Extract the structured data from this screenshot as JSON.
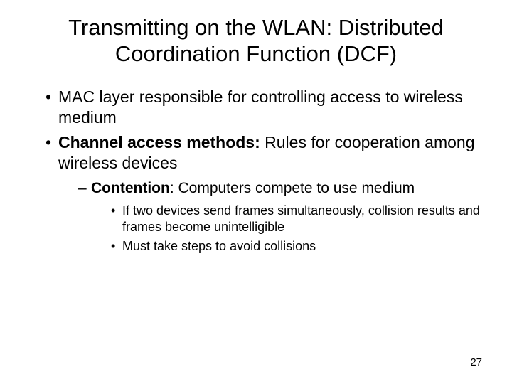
{
  "slide": {
    "title": "Transmitting on the WLAN: Distributed Coordination Function (DCF)",
    "page_number": "27",
    "background_color": "#ffffff",
    "text_color": "#000000",
    "title_fontsize": 31,
    "l1_fontsize": 23,
    "l2_fontsize": 21,
    "l3_fontsize": 18,
    "bullets": {
      "l1_a": "MAC layer responsible for controlling access to wireless medium",
      "l1_b_bold": "Channel access methods:",
      "l1_b_rest": " Rules for cooperation among wireless devices",
      "l2_a_bold": "Contention",
      "l2_a_rest": ": Computers compete to use medium",
      "l3_a": "If two devices send frames simultaneously, collision results and frames become unintelligible",
      "l3_b": "Must take steps to avoid collisions"
    }
  }
}
